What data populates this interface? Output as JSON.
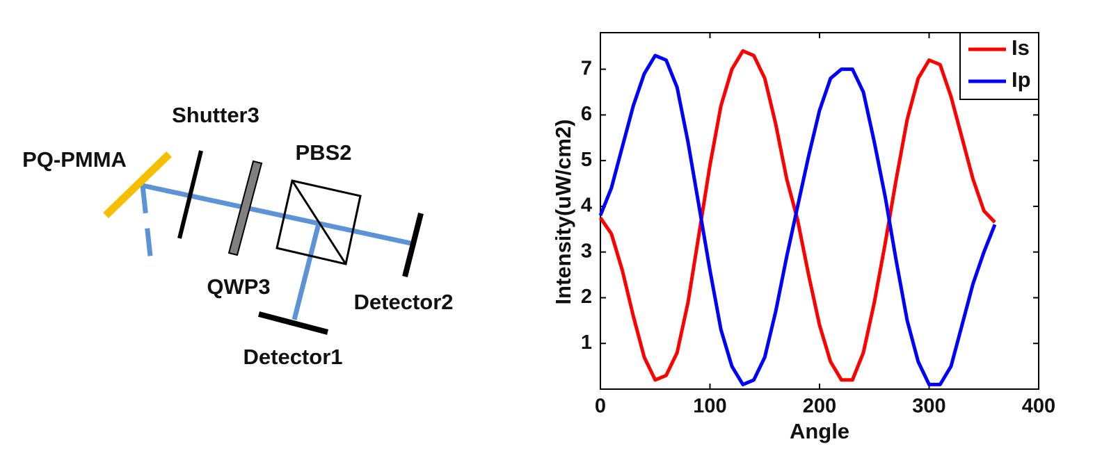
{
  "diagram": {
    "shutter": "Shutter3",
    "sample": "PQ-PMMA",
    "splitter": "PBS2",
    "waveplate": "QWP3",
    "detector_a": "Detector2",
    "detector_b": "Detector1"
  },
  "chart_data": {
    "type": "line",
    "xlabel": "Angle",
    "ylabel": "Intensity(uW/cm2)",
    "x": [
      0,
      10,
      20,
      30,
      40,
      50,
      60,
      70,
      80,
      90,
      100,
      110,
      120,
      130,
      140,
      150,
      160,
      170,
      180,
      190,
      200,
      210,
      220,
      230,
      240,
      250,
      260,
      270,
      280,
      290,
      300,
      310,
      320,
      330,
      340,
      350,
      360
    ],
    "series": [
      {
        "name": "Is",
        "color": "#ff0000",
        "values": [
          3.75,
          3.4,
          2.6,
          1.6,
          0.7,
          0.2,
          0.3,
          0.8,
          1.9,
          3.4,
          4.9,
          6.2,
          7.0,
          7.4,
          7.3,
          6.8,
          5.8,
          4.6,
          3.7,
          2.5,
          1.4,
          0.6,
          0.2,
          0.2,
          0.8,
          1.9,
          3.2,
          4.6,
          5.9,
          6.8,
          7.2,
          7.1,
          6.4,
          5.5,
          4.6,
          3.9,
          3.65
        ]
      },
      {
        "name": "Ip",
        "color": "#0000ff",
        "values": [
          3.8,
          4.4,
          5.3,
          6.2,
          6.9,
          7.3,
          7.2,
          6.6,
          5.4,
          4.0,
          2.6,
          1.3,
          0.5,
          0.1,
          0.2,
          0.7,
          1.7,
          2.9,
          4.0,
          5.1,
          6.1,
          6.8,
          7.0,
          7.0,
          6.5,
          5.4,
          4.2,
          2.8,
          1.5,
          0.6,
          0.1,
          0.1,
          0.5,
          1.4,
          2.3,
          3.0,
          3.6
        ]
      }
    ],
    "xlim": [
      0,
      400
    ],
    "xticks": [
      0,
      100,
      200,
      300,
      400
    ],
    "ylim": [
      0,
      7.8
    ],
    "yticks": [
      1,
      2,
      3,
      4,
      5,
      6,
      7
    ],
    "legend": "upper-right",
    "grid": false
  }
}
